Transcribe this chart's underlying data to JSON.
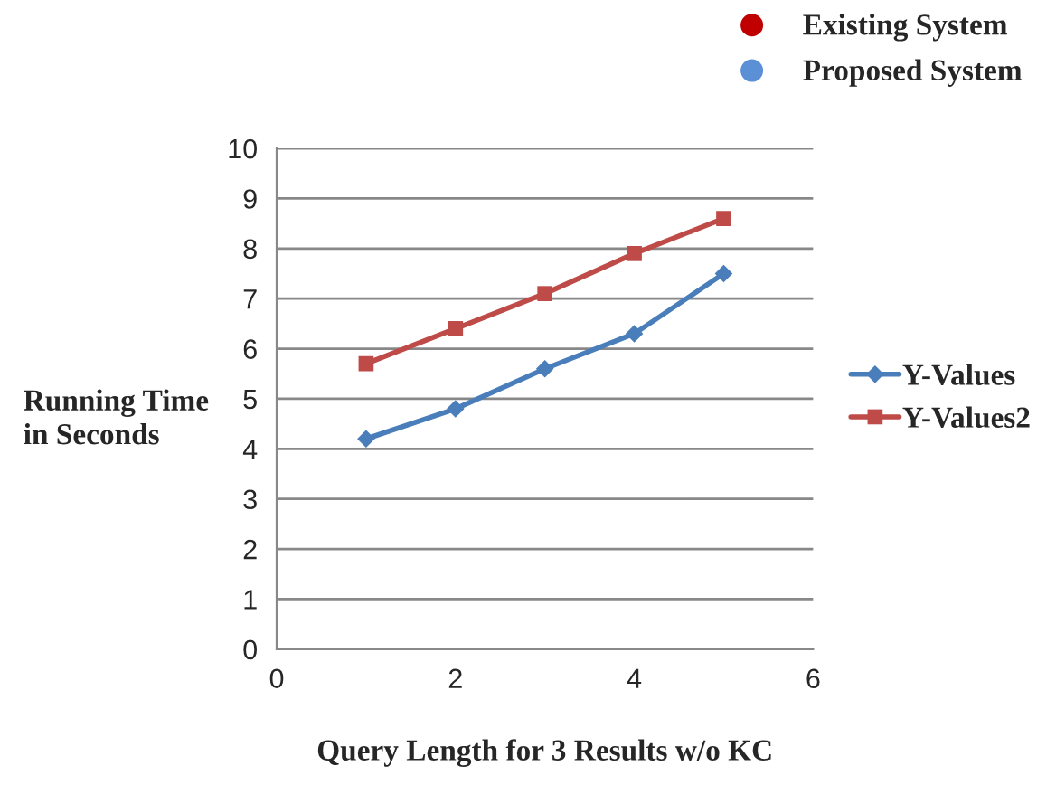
{
  "chart_data": {
    "type": "line",
    "xlabel": "Query Length for 3 Results w/o KC",
    "ylabel": "Running Time\nin Seconds",
    "x": [
      1,
      2,
      3,
      4,
      5
    ],
    "series": [
      {
        "name": "Y-Values",
        "color": "#4a7ebb",
        "values": [
          4.2,
          4.8,
          5.6,
          6.3,
          7.5
        ],
        "marker": "diamond"
      },
      {
        "name": "Y-Values2",
        "color": "#be4b48",
        "values": [
          5.7,
          6.4,
          7.1,
          7.9,
          8.6
        ],
        "marker": "square"
      }
    ],
    "xlim": [
      0,
      6
    ],
    "xticks": [
      0,
      2,
      4,
      6
    ],
    "ylim": [
      0,
      10
    ],
    "yticks": [
      0,
      1,
      2,
      3,
      4,
      5,
      6,
      7,
      8,
      9,
      10
    ],
    "grid": "y",
    "legend": "right",
    "line_style": "solid",
    "annotations": [
      "Existing System",
      "Proposed System"
    ]
  }
}
